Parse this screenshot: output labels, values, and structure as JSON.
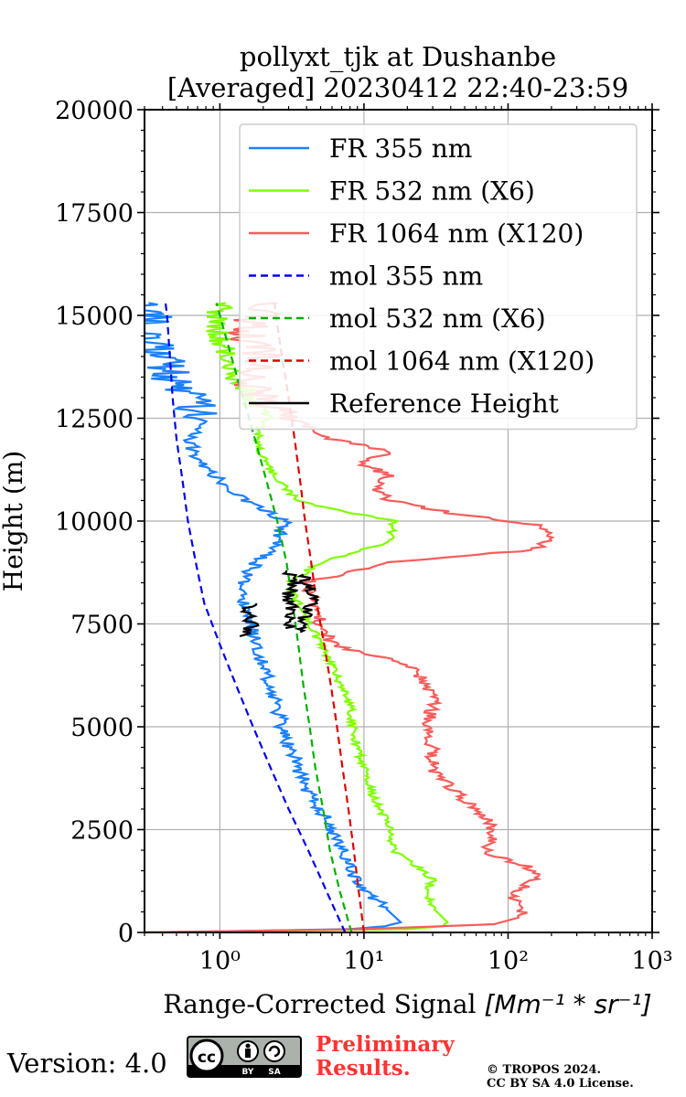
{
  "chart_data": {
    "type": "line",
    "title_line1": "pollyxt_tjk at Dushanbe",
    "title_line2": "[Averaged] 20230412 22:40-23:59",
    "xlabel_text": "Range-Corrected Signal ",
    "xlabel_unit": "[Mm⁻¹ * sr⁻¹]",
    "ylabel": "Height (m)",
    "xscale": "log",
    "xlim": [
      0.3,
      1000
    ],
    "ylim": [
      0,
      20000
    ],
    "x_ticks": [
      {
        "value": 1,
        "label": "10⁰"
      },
      {
        "value": 10,
        "label": "10¹"
      },
      {
        "value": 100,
        "label": "10²"
      },
      {
        "value": 1000,
        "label": "10³"
      }
    ],
    "y_ticks": [
      {
        "value": 0,
        "label": "0"
      },
      {
        "value": 2500,
        "label": "2500"
      },
      {
        "value": 5000,
        "label": "5000"
      },
      {
        "value": 7500,
        "label": "7500"
      },
      {
        "value": 10000,
        "label": "10000"
      },
      {
        "value": 12500,
        "label": "12500"
      },
      {
        "value": 15000,
        "label": "15000"
      },
      {
        "value": 17500,
        "label": "17500"
      },
      {
        "value": 20000,
        "label": "20000"
      }
    ],
    "grid": true,
    "legend_position": "top-right",
    "series": [
      {
        "name": "FR 355 nm",
        "color": "#1a80ff",
        "style": "solid",
        "noise": 0.05,
        "points": [
          [
            0.3,
            0
          ],
          [
            8,
            80
          ],
          [
            14,
            150
          ],
          [
            18,
            250
          ],
          [
            14,
            600
          ],
          [
            10,
            1000
          ],
          [
            8,
            1500
          ],
          [
            7.5,
            1800
          ],
          [
            6.5,
            2200
          ],
          [
            6,
            2500
          ],
          [
            5,
            3000
          ],
          [
            4,
            3500
          ],
          [
            3.5,
            4000
          ],
          [
            3,
            4500
          ],
          [
            2.7,
            5000
          ],
          [
            2.5,
            5500
          ],
          [
            2.2,
            6000
          ],
          [
            2,
            6500
          ],
          [
            1.8,
            7000
          ],
          [
            1.6,
            7500
          ],
          [
            1.5,
            8000
          ],
          [
            1.4,
            8500
          ],
          [
            1.8,
            9000
          ],
          [
            2.5,
            9500
          ],
          [
            2.8,
            10000
          ],
          [
            1.5,
            10500
          ],
          [
            1,
            11000
          ],
          [
            0.7,
            11500
          ],
          [
            0.6,
            12000
          ],
          [
            0.8,
            12500
          ],
          [
            0.6,
            13000
          ],
          [
            0.45,
            13500
          ],
          [
            0.4,
            14000
          ],
          [
            0.35,
            14500
          ],
          [
            0.35,
            15000
          ],
          [
            0.32,
            15300
          ]
        ]
      },
      {
        "name": "FR 532 nm (X6)",
        "color": "#80ff00",
        "style": "solid",
        "noise": 0.03,
        "points": [
          [
            0.3,
            0
          ],
          [
            20,
            80
          ],
          [
            35,
            150
          ],
          [
            38,
            250
          ],
          [
            30,
            600
          ],
          [
            28,
            1000
          ],
          [
            30,
            1300
          ],
          [
            25,
            1500
          ],
          [
            20,
            1800
          ],
          [
            16,
            2000
          ],
          [
            15,
            2500
          ],
          [
            13,
            3000
          ],
          [
            11,
            3500
          ],
          [
            10,
            4000
          ],
          [
            9,
            4500
          ],
          [
            8.5,
            5000
          ],
          [
            8,
            5500
          ],
          [
            7,
            6000
          ],
          [
            6,
            6500
          ],
          [
            5,
            7000
          ],
          [
            4.2,
            7500
          ],
          [
            3.5,
            8000
          ],
          [
            3,
            8500
          ],
          [
            5,
            9000
          ],
          [
            15,
            9500
          ],
          [
            16,
            10000
          ],
          [
            6,
            10300
          ],
          [
            3.5,
            10500
          ],
          [
            2.5,
            11000
          ],
          [
            2,
            11500
          ],
          [
            1.8,
            12000
          ],
          [
            2,
            12500
          ],
          [
            1.7,
            13000
          ],
          [
            1.3,
            13500
          ],
          [
            1.1,
            14000
          ],
          [
            1,
            14500
          ],
          [
            0.95,
            15000
          ],
          [
            1.1,
            15300
          ]
        ]
      },
      {
        "name": "FR 1064 nm (X120)",
        "color": "#f75c5c",
        "style": "solid",
        "noise": 0.05,
        "points": [
          [
            0.3,
            0
          ],
          [
            10,
            80
          ],
          [
            80,
            200
          ],
          [
            130,
            400
          ],
          [
            110,
            800
          ],
          [
            120,
            1000
          ],
          [
            160,
            1300
          ],
          [
            140,
            1600
          ],
          [
            90,
            1800
          ],
          [
            70,
            2000
          ],
          [
            80,
            2500
          ],
          [
            60,
            3000
          ],
          [
            40,
            3500
          ],
          [
            30,
            4000
          ],
          [
            30,
            4500
          ],
          [
            28,
            5000
          ],
          [
            30,
            5500
          ],
          [
            28,
            6000
          ],
          [
            20,
            6500
          ],
          [
            10,
            6800
          ],
          [
            6,
            7000
          ],
          [
            5,
            7500
          ],
          [
            4.5,
            8000
          ],
          [
            4,
            8500
          ],
          [
            15,
            9000
          ],
          [
            150,
            9300
          ],
          [
            200,
            9600
          ],
          [
            160,
            9900
          ],
          [
            40,
            10200
          ],
          [
            15,
            10500
          ],
          [
            12,
            10800
          ],
          [
            15,
            11100
          ],
          [
            10,
            11400
          ],
          [
            15,
            11700
          ],
          [
            6,
            12000
          ],
          [
            3,
            12500
          ],
          [
            2,
            13000
          ],
          [
            1.5,
            13500
          ],
          [
            2,
            14000
          ],
          [
            1.5,
            14500
          ],
          [
            1.8,
            15000
          ],
          [
            2.5,
            15300
          ]
        ]
      },
      {
        "name": "mol 355 nm",
        "color": "#0000ee",
        "style": "dashed",
        "points": [
          [
            7.4,
            0
          ],
          [
            5.5,
            1000
          ],
          [
            4.1,
            2000
          ],
          [
            3,
            3000
          ],
          [
            2.25,
            4000
          ],
          [
            1.7,
            5000
          ],
          [
            1.3,
            6000
          ],
          [
            1,
            7000
          ],
          [
            0.78,
            8000
          ],
          [
            0.68,
            9000
          ],
          [
            0.6,
            10000
          ],
          [
            0.55,
            11000
          ],
          [
            0.5,
            12000
          ],
          [
            0.47,
            13000
          ],
          [
            0.45,
            14000
          ],
          [
            0.43,
            15000
          ],
          [
            0.42,
            15300
          ]
        ]
      },
      {
        "name": "mol 532 nm (X6)",
        "color": "#00b000",
        "style": "dashed",
        "points": [
          [
            8.2,
            0
          ],
          [
            6.8,
            1000
          ],
          [
            5.8,
            2000
          ],
          [
            5.2,
            3000
          ],
          [
            4.6,
            4000
          ],
          [
            4.2,
            5000
          ],
          [
            3.8,
            6000
          ],
          [
            3.5,
            7000
          ],
          [
            3.2,
            8000
          ],
          [
            2.9,
            9000
          ],
          [
            2.5,
            10000
          ],
          [
            2.1,
            11000
          ],
          [
            1.75,
            12000
          ],
          [
            1.45,
            13000
          ],
          [
            1.2,
            14000
          ],
          [
            1.0,
            15000
          ],
          [
            0.95,
            15300
          ]
        ]
      },
      {
        "name": "mol 1064 nm (X120)",
        "color": "#dd0000",
        "style": "dashed",
        "points": [
          [
            10,
            0
          ],
          [
            9.2,
            1000
          ],
          [
            8.5,
            2000
          ],
          [
            7.8,
            3000
          ],
          [
            7.1,
            4000
          ],
          [
            6.5,
            5000
          ],
          [
            5.9,
            6000
          ],
          [
            5.3,
            7000
          ],
          [
            4.7,
            8000
          ],
          [
            4.3,
            9000
          ],
          [
            3.9,
            10000
          ],
          [
            3.6,
            11000
          ],
          [
            3.3,
            12000
          ],
          [
            3.0,
            13000
          ],
          [
            2.7,
            14000
          ],
          [
            2.45,
            15000
          ],
          [
            2.4,
            15300
          ]
        ]
      },
      {
        "name": "Reference Height",
        "color": "#000000",
        "style": "solid",
        "noise": 0.05,
        "hide_in_plot": false,
        "segments": [
          [
            [
              1.5,
              7200
            ],
            [
              1.7,
              7500
            ],
            [
              1.5,
              7800
            ],
            [
              1.8,
              8000
            ]
          ],
          [
            [
              3,
              7400
            ],
            [
              3.2,
              7800
            ],
            [
              3,
              8200
            ],
            [
              3.3,
              8500
            ],
            [
              2.9,
              8800
            ]
          ],
          [
            [
              3.6,
              7300
            ],
            [
              4,
              7800
            ],
            [
              4.6,
              8200
            ],
            [
              3.8,
              8700
            ]
          ]
        ]
      }
    ]
  },
  "footer": {
    "version": "Version: 4.0",
    "preliminary_line1": "Preliminary",
    "preliminary_line2": "Results.",
    "copyright_line1": "© TROPOS 2024.",
    "copyright_line2": "CC BY SA 4.0 License."
  }
}
